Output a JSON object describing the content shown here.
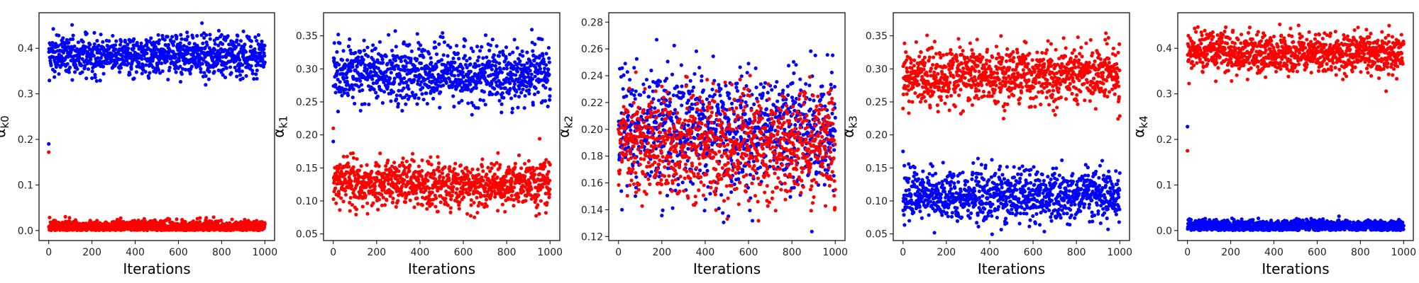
{
  "chart_data": [
    {
      "type": "scatter",
      "xlabel": "Iterations",
      "ylabel": "α",
      "ylabel_sub": "k0",
      "xlim": [
        -45,
        1045
      ],
      "ylim": [
        -0.022,
        0.478
      ],
      "x_ticks": [
        0,
        200,
        400,
        600,
        800,
        1000
      ],
      "y_ticks": [
        0.0,
        0.1,
        0.2,
        0.3,
        0.4
      ],
      "y_tick_labels": [
        "0.0",
        "0.1",
        "0.2",
        "0.3",
        "0.4"
      ],
      "grid": false,
      "series": [
        {
          "color": "#0000ff",
          "iterations": 1000,
          "start_value": 0.19,
          "center": 0.385,
          "spread": 0.022
        },
        {
          "color": "#ff0000",
          "iterations": 1000,
          "start_value": 0.172,
          "center": 0.008,
          "spread": 0.007
        }
      ]
    },
    {
      "type": "scatter",
      "xlabel": "Iterations",
      "ylabel": "α",
      "ylabel_sub": "k1",
      "xlim": [
        -45,
        1045
      ],
      "ylim": [
        0.04,
        0.385
      ],
      "x_ticks": [
        0,
        200,
        400,
        600,
        800,
        1000
      ],
      "y_ticks": [
        0.05,
        0.1,
        0.15,
        0.2,
        0.25,
        0.3,
        0.35
      ],
      "y_tick_labels": [
        "0.05",
        "0.10",
        "0.15",
        "0.20",
        "0.25",
        "0.30",
        "0.35"
      ],
      "grid": false,
      "series": [
        {
          "color": "#0000ff",
          "iterations": 1000,
          "start_value": 0.19,
          "center": 0.293,
          "spread": 0.022
        },
        {
          "color": "#ff0000",
          "iterations": 1000,
          "start_value": 0.21,
          "center": 0.127,
          "spread": 0.018
        }
      ]
    },
    {
      "type": "scatter",
      "xlabel": "Iterations",
      "ylabel": "α",
      "ylabel_sub": "k2",
      "xlim": [
        -45,
        1045
      ],
      "ylim": [
        0.117,
        0.287
      ],
      "x_ticks": [
        0,
        200,
        400,
        600,
        800,
        1000
      ],
      "y_ticks": [
        0.12,
        0.14,
        0.16,
        0.18,
        0.2,
        0.22,
        0.24,
        0.26,
        0.28
      ],
      "y_tick_labels": [
        "0.12",
        "0.14",
        "0.16",
        "0.18",
        "0.20",
        "0.22",
        "0.24",
        "0.26",
        "0.28"
      ],
      "grid": false,
      "series": [
        {
          "color": "#0000ff",
          "iterations": 1000,
          "start_value": 0.2,
          "center": 0.2,
          "spread": 0.022
        },
        {
          "color": "#ff0000",
          "iterations": 1000,
          "start_value": 0.2,
          "center": 0.187,
          "spread": 0.02
        }
      ]
    },
    {
      "type": "scatter",
      "xlabel": "Iterations",
      "ylabel": "α",
      "ylabel_sub": "k3",
      "xlim": [
        -45,
        1045
      ],
      "ylim": [
        0.04,
        0.385
      ],
      "x_ticks": [
        0,
        200,
        400,
        600,
        800,
        1000
      ],
      "y_ticks": [
        0.05,
        0.1,
        0.15,
        0.2,
        0.25,
        0.3,
        0.35
      ],
      "y_tick_labels": [
        "0.05",
        "0.10",
        "0.15",
        "0.20",
        "0.25",
        "0.30",
        "0.35"
      ],
      "grid": false,
      "series": [
        {
          "color": "#ff0000",
          "iterations": 1000,
          "start_value": 0.24,
          "center": 0.29,
          "spread": 0.022
        },
        {
          "color": "#0000ff",
          "iterations": 1000,
          "start_value": 0.175,
          "center": 0.108,
          "spread": 0.02
        }
      ]
    },
    {
      "type": "scatter",
      "xlabel": "Iterations",
      "ylabel": "α",
      "ylabel_sub": "k4",
      "xlim": [
        -45,
        1045
      ],
      "ylim": [
        -0.022,
        0.478
      ],
      "x_ticks": [
        0,
        200,
        400,
        600,
        800,
        1000
      ],
      "y_ticks": [
        0.0,
        0.1,
        0.2,
        0.3,
        0.4
      ],
      "y_tick_labels": [
        "0.0",
        "0.1",
        "0.2",
        "0.3",
        "0.4"
      ],
      "grid": false,
      "series": [
        {
          "color": "#ff0000",
          "iterations": 1000,
          "start_value": 0.175,
          "center": 0.39,
          "spread": 0.022
        },
        {
          "color": "#0000ff",
          "iterations": 1000,
          "start_value": 0.228,
          "center": 0.01,
          "spread": 0.007
        }
      ]
    }
  ]
}
